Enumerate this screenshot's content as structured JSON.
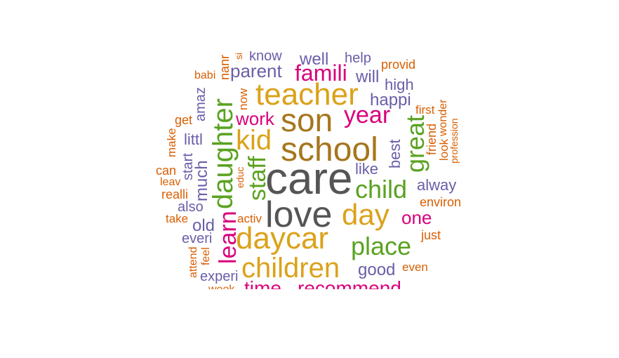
{
  "palette": {
    "gray": "#555555",
    "gold": "#dba21a",
    "brown": "#a6761d",
    "magenta": "#d9007c",
    "green": "#5aa221",
    "purple": "#6a5ea8",
    "orange": "#d95f02"
  },
  "words": [
    {
      "text": "care",
      "color": "gray"
    },
    {
      "text": "love",
      "color": "gray"
    },
    {
      "text": "school",
      "color": "brown"
    },
    {
      "text": "son",
      "color": "brown"
    },
    {
      "text": "teacher",
      "color": "gold"
    },
    {
      "text": "daycar",
      "color": "gold"
    },
    {
      "text": "children",
      "color": "gold"
    },
    {
      "text": "day",
      "color": "gold"
    },
    {
      "text": "kid",
      "color": "gold"
    },
    {
      "text": "place",
      "color": "green"
    },
    {
      "text": "child",
      "color": "green"
    },
    {
      "text": "daughter",
      "color": "green"
    },
    {
      "text": "great",
      "color": "green"
    },
    {
      "text": "staff",
      "color": "green"
    },
    {
      "text": "year",
      "color": "magenta"
    },
    {
      "text": "famili",
      "color": "magenta"
    },
    {
      "text": "work",
      "color": "magenta"
    },
    {
      "text": "learn",
      "color": "magenta"
    },
    {
      "text": "one",
      "color": "magenta"
    },
    {
      "text": "time",
      "color": "magenta"
    },
    {
      "text": "recommend",
      "color": "magenta"
    },
    {
      "text": "parent",
      "color": "purple"
    },
    {
      "text": "happi",
      "color": "purple"
    },
    {
      "text": "high",
      "color": "purple"
    },
    {
      "text": "will",
      "color": "purple"
    },
    {
      "text": "well",
      "color": "purple"
    },
    {
      "text": "help",
      "color": "purple"
    },
    {
      "text": "know",
      "color": "purple"
    },
    {
      "text": "like",
      "color": "purple"
    },
    {
      "text": "best",
      "color": "purple"
    },
    {
      "text": "alway",
      "color": "purple"
    },
    {
      "text": "good",
      "color": "purple"
    },
    {
      "text": "littl",
      "color": "purple"
    },
    {
      "text": "much",
      "color": "purple"
    },
    {
      "text": "start",
      "color": "purple"
    },
    {
      "text": "amaz",
      "color": "purple"
    },
    {
      "text": "also",
      "color": "purple"
    },
    {
      "text": "old",
      "color": "purple"
    },
    {
      "text": "everi",
      "color": "purple"
    },
    {
      "text": "experi",
      "color": "purple"
    },
    {
      "text": "provid",
      "color": "orange"
    },
    {
      "text": "first",
      "color": "orange"
    },
    {
      "text": "friend",
      "color": "orange"
    },
    {
      "text": "look",
      "color": "orange"
    },
    {
      "text": "wonder",
      "color": "orange"
    },
    {
      "text": "profession",
      "color": "orange"
    },
    {
      "text": "environ",
      "color": "orange"
    },
    {
      "text": "just",
      "color": "orange"
    },
    {
      "text": "even",
      "color": "orange"
    },
    {
      "text": "get",
      "color": "orange"
    },
    {
      "text": "make",
      "color": "orange"
    },
    {
      "text": "can",
      "color": "orange"
    },
    {
      "text": "leav",
      "color": "orange"
    },
    {
      "text": "realli",
      "color": "orange"
    },
    {
      "text": "take",
      "color": "orange"
    },
    {
      "text": "activ",
      "color": "orange"
    },
    {
      "text": "educ",
      "color": "orange"
    },
    {
      "text": "now",
      "color": "orange"
    },
    {
      "text": "babi",
      "color": "orange"
    },
    {
      "text": "nanr",
      "color": "orange"
    },
    {
      "text": "si",
      "color": "orange"
    },
    {
      "text": "attend",
      "color": "orange"
    },
    {
      "text": "feel",
      "color": "orange"
    },
    {
      "text": "week",
      "color": "orange"
    }
  ]
}
